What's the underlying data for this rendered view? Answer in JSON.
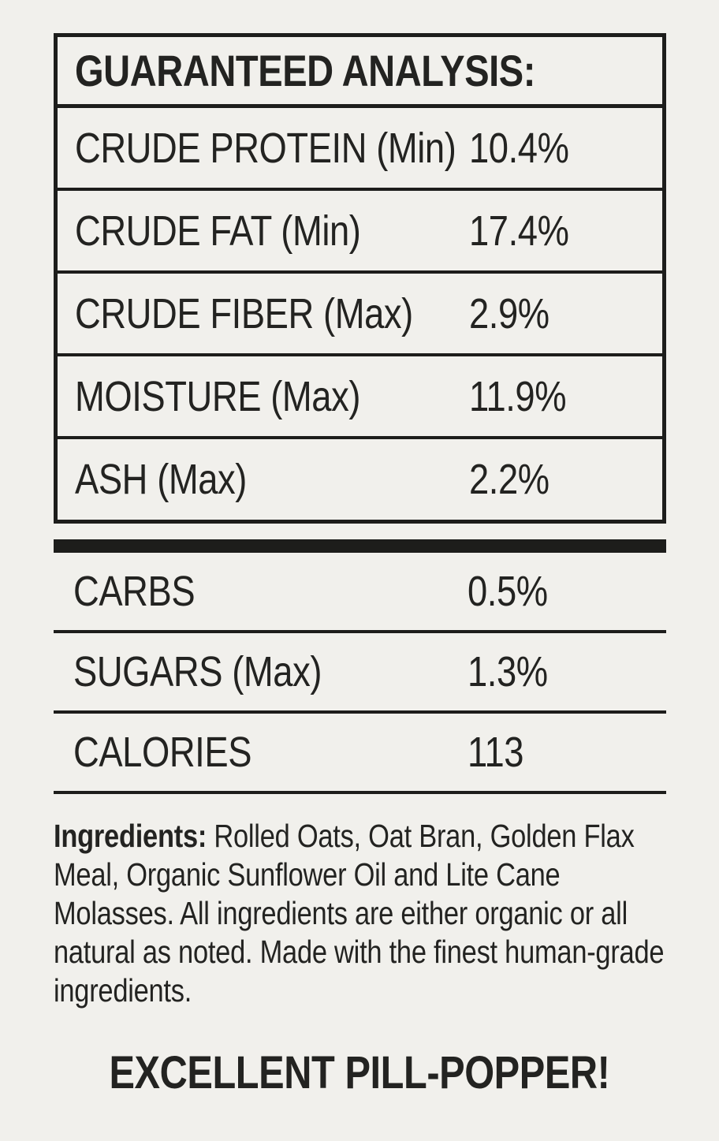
{
  "colors": {
    "background": "#f1f0ec",
    "ink": "#232321",
    "line": "#1d1d1b"
  },
  "guaranteed_analysis": {
    "title": "GUARANTEED ANALYSIS:",
    "rows": [
      {
        "label": "CRUDE PROTEIN (Min)",
        "value": "10.4%"
      },
      {
        "label": "CRUDE FAT (Min)",
        "value": "17.4%"
      },
      {
        "label": "CRUDE FIBER (Max)",
        "value": "2.9%"
      },
      {
        "label": "MOISTURE (Max)",
        "value": "11.9%"
      },
      {
        "label": "ASH (Max)",
        "value": "2.2%"
      }
    ]
  },
  "additional_analysis": {
    "rows": [
      {
        "label": "CARBS",
        "value": "0.5%"
      },
      {
        "label": "SUGARS (Max)",
        "value": "1.3%"
      },
      {
        "label": "CALORIES",
        "value": "113"
      }
    ]
  },
  "ingredients": {
    "label": "Ingredients:",
    "text": " Rolled Oats, Oat Bran, Golden Flax Meal, Organic Sunflower Oil and Lite Cane Molasses. All ingredients are either organic or all natural as noted. Made with the finest human-grade ingredients."
  },
  "tagline": "EXCELLENT PILL-POPPER!"
}
